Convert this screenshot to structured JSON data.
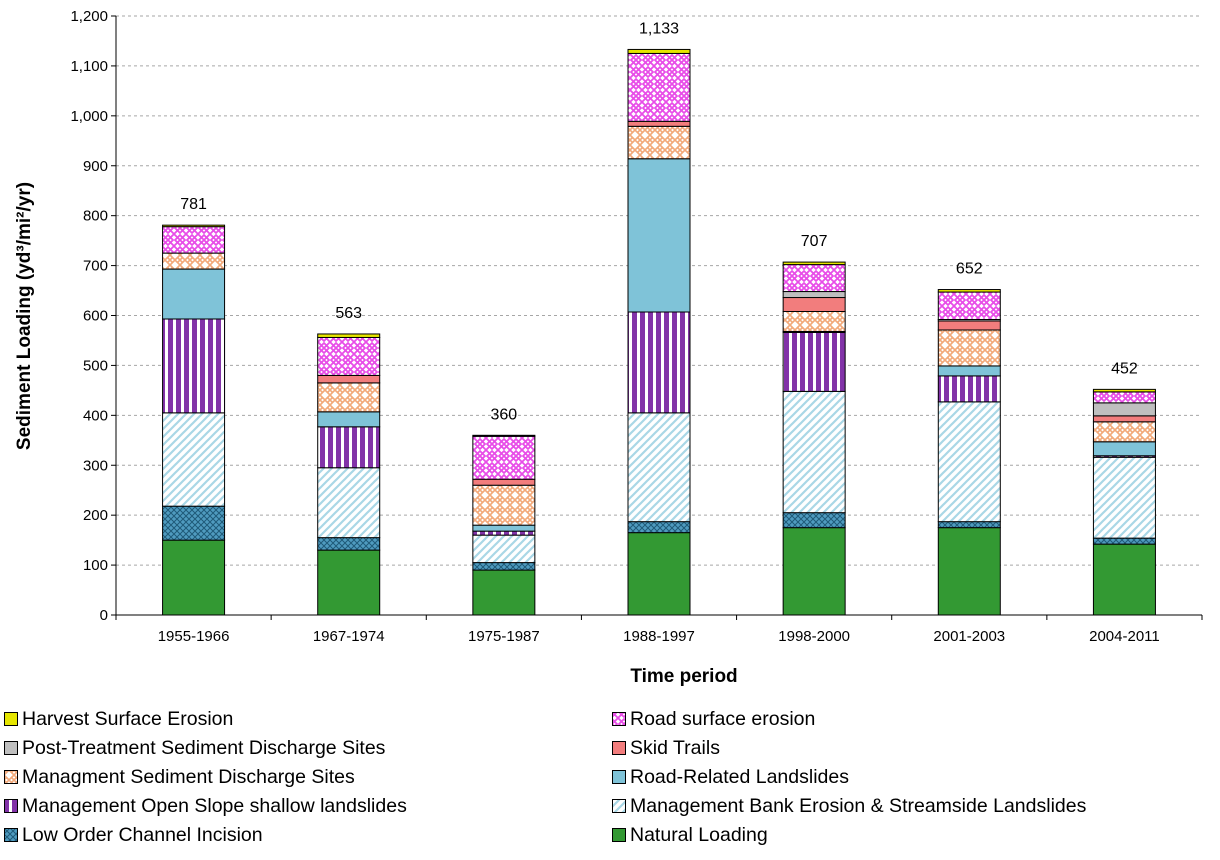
{
  "chart_data": {
    "type": "bar",
    "stacked": true,
    "xlabel": "Time period",
    "ylabel": "Sediment Loading (yd³/mi²/yr)",
    "ylim": [
      0,
      1200
    ],
    "yticks": [
      0,
      100,
      200,
      300,
      400,
      500,
      600,
      700,
      800,
      900,
      1000,
      1100,
      1200
    ],
    "ytick_labels": [
      "0",
      "100",
      "200",
      "300",
      "400",
      "500",
      "600",
      "700",
      "800",
      "900",
      "1,000",
      "1,100",
      "1,200"
    ],
    "grid": true,
    "legend_position": "bottom",
    "categories": [
      "1955-1966",
      "1967-1974",
      "1975-1987",
      "1988-1997",
      "1998-2000",
      "2001-2003",
      "2004-2011"
    ],
    "totals": [
      781,
      563,
      360,
      1133,
      707,
      652,
      452
    ],
    "total_labels": [
      "781",
      "563",
      "360",
      "1,133",
      "707",
      "652",
      "452"
    ],
    "series": [
      {
        "name": "Natural Loading",
        "color": "#339933",
        "pattern": "solid",
        "values": [
          150,
          130,
          90,
          165,
          175,
          175,
          142
        ]
      },
      {
        "name": "Low Order Channel Incision",
        "color": "#4f9bbf",
        "pattern": "crosshatch",
        "values": [
          68,
          25,
          15,
          22,
          30,
          12,
          12
        ]
      },
      {
        "name": "Management Bank Erosion & Streamside Landslides",
        "color": "#a9d7e6",
        "pattern": "diagonal",
        "values": [
          187,
          140,
          55,
          218,
          243,
          240,
          162
        ]
      },
      {
        "name": "Management Open Slope shallow landslides",
        "color": "#8233a8",
        "pattern": "vertical",
        "values": [
          188,
          82,
          8,
          202,
          118,
          52,
          3
        ]
      },
      {
        "name": "Road-Related Landslides",
        "color": "#7fc3d8",
        "pattern": "solid",
        "values": [
          100,
          30,
          12,
          307,
          2,
          20,
          28
        ]
      },
      {
        "name": "Managment Sediment Discharge Sites",
        "color": "#f2a97a",
        "pattern": "weave",
        "values": [
          32,
          58,
          80,
          65,
          40,
          72,
          40
        ]
      },
      {
        "name": "Skid Trails",
        "color": "#f27d7d",
        "pattern": "solid",
        "values": [
          0,
          15,
          12,
          10,
          28,
          18,
          12
        ]
      },
      {
        "name": "Post-Treatment Sediment Discharge Sites",
        "color": "#bfbfbf",
        "pattern": "solid",
        "values": [
          0,
          0,
          0,
          0,
          12,
          3,
          26
        ]
      },
      {
        "name": "Road surface erosion",
        "color": "#e84de8",
        "pattern": "lattice",
        "values": [
          53,
          76,
          86,
          136,
          54,
          55,
          22
        ]
      },
      {
        "name": "Harvest Surface Erosion",
        "color": "#e6e600",
        "pattern": "solid",
        "values": [
          3,
          7,
          2,
          8,
          5,
          5,
          5
        ]
      }
    ]
  },
  "legend": {
    "items": [
      {
        "label": "Harvest Surface Erosion",
        "series_index": 9
      },
      {
        "label": "Road surface erosion",
        "series_index": 8
      },
      {
        "label": "Post-Treatment Sediment Discharge Sites",
        "series_index": 7
      },
      {
        "label": "Skid Trails",
        "series_index": 6
      },
      {
        "label": "Managment Sediment Discharge Sites",
        "series_index": 5
      },
      {
        "label": "Road-Related Landslides",
        "series_index": 4
      },
      {
        "label": "Management Open Slope shallow landslides",
        "series_index": 3
      },
      {
        "label": "Management Bank Erosion & Streamside Landslides",
        "series_index": 2
      },
      {
        "label": "Low Order Channel Incision",
        "series_index": 1
      },
      {
        "label": "Natural Loading",
        "series_index": 0
      }
    ]
  }
}
